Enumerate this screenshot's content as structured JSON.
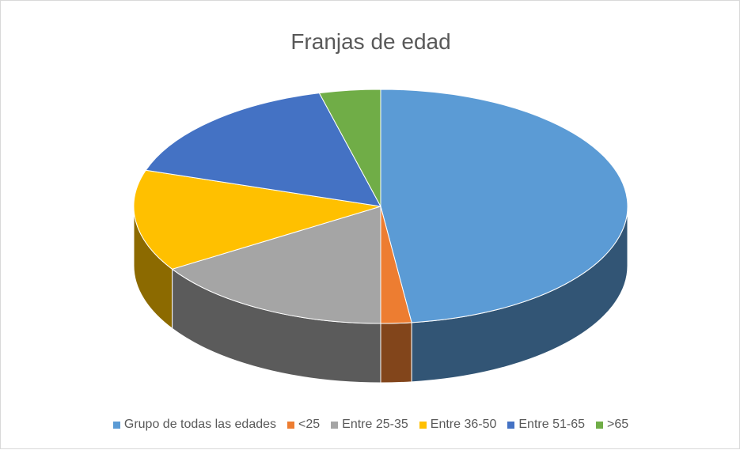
{
  "chart_data": {
    "type": "pie3d",
    "title": "Franjas de edad",
    "categories": [
      "Grupo de todas las edades",
      "<25",
      "Entre 25-35",
      "Entre 36-50",
      "Entre 51-65",
      ">65"
    ],
    "values": [
      48,
      2,
      16,
      14,
      16,
      4
    ],
    "colors": [
      "#5b9bd5",
      "#ed7d31",
      "#a5a5a5",
      "#ffc000",
      "#4472c4",
      "#70ad47"
    ],
    "legend": "bottom"
  }
}
